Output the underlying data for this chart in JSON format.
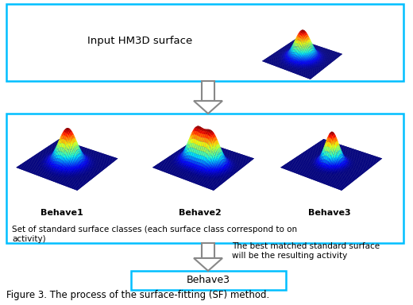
{
  "title": "Figure 3. The process of the surface-fitting (SF) method.",
  "box1_label": "Input HM3D surface",
  "box2_label": "Set of standard surface classes (each surface class correspond to on\nactivity)",
  "box3_label": "Behave3",
  "arrow_label": "The best matched standard surface\nwill be the resulting activity",
  "behave_labels": [
    "Behave1",
    "Behave2",
    "Behave3"
  ],
  "box_edge_color": "#00BFFF",
  "box_face_color": "white",
  "background_color": "white",
  "surface_cmap": "jet",
  "navy_color": "#000080",
  "fig_width": 5.2,
  "fig_height": 3.84,
  "dpi": 100
}
